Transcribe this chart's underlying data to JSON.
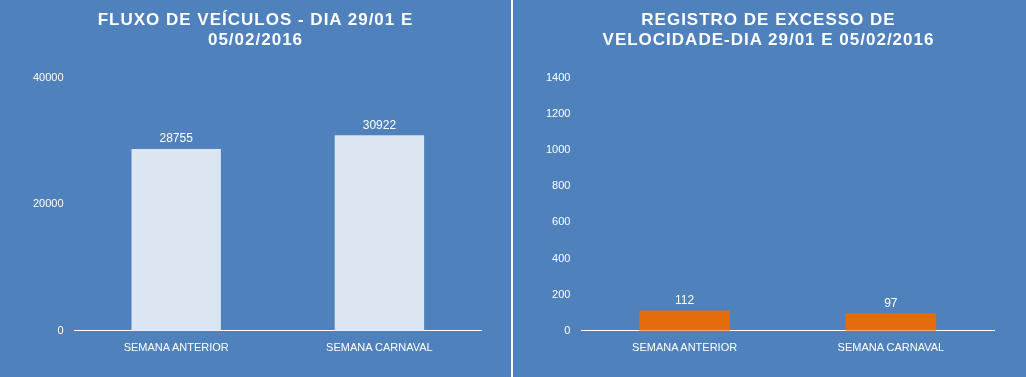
{
  "chart_data": [
    {
      "type": "bar",
      "title": "FLUXO DE VEÍCULOS - DIA 29/01 E 05/02/2016",
      "categories": [
        "SEMANA ANTERIOR",
        "SEMANA CARNAVAL"
      ],
      "values": [
        28755,
        30922
      ],
      "color": "#dce6f2",
      "ylim": [
        0,
        40000
      ],
      "yticks": [
        0,
        20000,
        40000
      ],
      "data_labels": true,
      "grid": false,
      "legend": false
    },
    {
      "type": "bar",
      "title": "REGISTRO DE EXCESSO DE VELOCIDADE-DIA 29/01 E 05/02/2016",
      "categories": [
        "SEMANA ANTERIOR",
        "SEMANA CARNAVAL"
      ],
      "values": [
        112,
        97
      ],
      "color": "#e46c0a",
      "ylim": [
        0,
        1400
      ],
      "yticks": [
        0,
        200,
        400,
        600,
        800,
        1000,
        1200,
        1400
      ],
      "data_labels": true,
      "grid": false,
      "legend": false
    }
  ]
}
